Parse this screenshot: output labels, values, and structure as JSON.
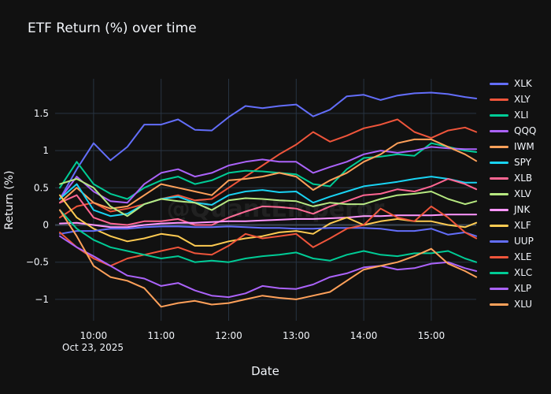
{
  "page": {
    "background_color": "#111111",
    "grid_color": "#283442",
    "zeroline_color": "#3a4654",
    "text_color": "#f2f5fa",
    "watermark": "@QuantEmperor"
  },
  "chart_data": {
    "type": "line",
    "title": "ETF Return (%) over time",
    "xlabel": "Date",
    "ylabel": "Return (%)",
    "date_annotation": "Oct 23, 2025",
    "legend_position": "right",
    "grid": true,
    "ylim": [
      -1.29,
      1.96
    ],
    "yticks": [
      {
        "label": "1.5",
        "value": 1.5
      },
      {
        "label": "1",
        "value": 1.0
      },
      {
        "label": "0.5",
        "value": 0.5
      },
      {
        "label": "0",
        "value": 0.0
      },
      {
        "label": "−0.5",
        "value": -0.5
      },
      {
        "label": "−1",
        "value": -1.0
      }
    ],
    "xticks": [
      {
        "label": "10:00",
        "minute": 30
      },
      {
        "label": "11:00",
        "minute": 90
      },
      {
        "label": "12:00",
        "minute": 150
      },
      {
        "label": "13:00",
        "minute": 210
      },
      {
        "label": "14:00",
        "minute": 270
      },
      {
        "label": "15:00",
        "minute": 330
      }
    ],
    "x_time_labels": [
      "09:30",
      "09:45",
      "10:00",
      "10:15",
      "10:30",
      "10:45",
      "11:00",
      "11:15",
      "11:30",
      "11:45",
      "12:00",
      "12:15",
      "12:30",
      "12:45",
      "13:00",
      "13:15",
      "13:30",
      "13:45",
      "14:00",
      "14:15",
      "14:30",
      "14:45",
      "15:00",
      "15:15",
      "15:30",
      "15:40"
    ],
    "x_minutes": [
      0,
      15,
      30,
      45,
      60,
      75,
      90,
      105,
      120,
      135,
      150,
      165,
      180,
      195,
      210,
      225,
      240,
      255,
      270,
      285,
      300,
      315,
      330,
      345,
      360,
      370
    ],
    "series": [
      {
        "name": "XLK",
        "color": "#636EFA",
        "values": [
          0.35,
          0.75,
          1.1,
          0.87,
          1.05,
          1.35,
          1.35,
          1.42,
          1.28,
          1.27,
          1.45,
          1.6,
          1.57,
          1.6,
          1.62,
          1.46,
          1.55,
          1.73,
          1.75,
          1.68,
          1.74,
          1.77,
          1.78,
          1.76,
          1.72,
          1.7
        ]
      },
      {
        "name": "XLY",
        "color": "#EF553B",
        "values": [
          0.1,
          0.25,
          0.3,
          0.18,
          0.22,
          0.28,
          0.35,
          0.4,
          0.33,
          0.35,
          0.5,
          0.65,
          0.8,
          0.95,
          1.08,
          1.25,
          1.12,
          1.2,
          1.3,
          1.35,
          1.42,
          1.25,
          1.17,
          1.27,
          1.31,
          1.25
        ]
      },
      {
        "name": "XLI",
        "color": "#00CC96",
        "values": [
          0.5,
          0.85,
          0.55,
          0.42,
          0.35,
          0.5,
          0.6,
          0.65,
          0.55,
          0.6,
          0.7,
          0.73,
          0.72,
          0.7,
          0.68,
          0.55,
          0.52,
          0.75,
          0.9,
          0.92,
          0.95,
          0.93,
          1.1,
          1.05,
          1.0,
          0.98
        ]
      },
      {
        "name": "QQQ",
        "color": "#AB63FA",
        "values": [
          0.35,
          0.65,
          0.45,
          0.32,
          0.3,
          0.55,
          0.7,
          0.75,
          0.65,
          0.7,
          0.8,
          0.85,
          0.88,
          0.85,
          0.85,
          0.7,
          0.78,
          0.85,
          0.95,
          1.0,
          0.97,
          1.0,
          1.05,
          1.03,
          1.02,
          1.02
        ]
      },
      {
        "name": "IWM",
        "color": "#FFA15A",
        "values": [
          0.3,
          0.5,
          0.3,
          0.22,
          0.25,
          0.4,
          0.55,
          0.5,
          0.45,
          0.4,
          0.6,
          0.62,
          0.65,
          0.7,
          0.65,
          0.47,
          0.6,
          0.7,
          0.85,
          0.95,
          1.1,
          1.15,
          1.15,
          1.05,
          0.95,
          0.86
        ]
      },
      {
        "name": "SPY",
        "color": "#19D3F3",
        "values": [
          0.35,
          0.55,
          0.2,
          0.12,
          0.15,
          0.28,
          0.35,
          0.38,
          0.3,
          0.27,
          0.4,
          0.45,
          0.47,
          0.44,
          0.45,
          0.3,
          0.38,
          0.45,
          0.52,
          0.55,
          0.58,
          0.62,
          0.65,
          0.62,
          0.57,
          0.57
        ]
      },
      {
        "name": "XLB",
        "color": "#FF6692",
        "values": [
          0.3,
          0.4,
          0.1,
          0.02,
          0.0,
          0.05,
          0.05,
          0.08,
          0.0,
          0.0,
          0.1,
          0.18,
          0.25,
          0.24,
          0.22,
          0.15,
          0.25,
          0.32,
          0.4,
          0.42,
          0.48,
          0.45,
          0.52,
          0.62,
          0.55,
          0.48
        ]
      },
      {
        "name": "XLV",
        "color": "#B6E880",
        "values": [
          0.55,
          0.62,
          0.5,
          0.25,
          0.12,
          0.28,
          0.35,
          0.32,
          0.3,
          0.2,
          0.33,
          0.36,
          0.35,
          0.33,
          0.32,
          0.25,
          0.3,
          0.28,
          0.28,
          0.35,
          0.4,
          0.42,
          0.45,
          0.35,
          0.28,
          0.32
        ]
      },
      {
        "name": "JNK",
        "color": "#FF97FF",
        "values": [
          0.02,
          0.03,
          0.0,
          -0.03,
          -0.03,
          0.0,
          0.02,
          0.03,
          0.03,
          0.04,
          0.05,
          0.05,
          0.06,
          0.07,
          0.08,
          0.08,
          0.09,
          0.1,
          0.12,
          0.12,
          0.13,
          0.13,
          0.13,
          0.14,
          0.14,
          0.14
        ]
      },
      {
        "name": "XLF",
        "color": "#FECB52",
        "values": [
          0.4,
          0.1,
          -0.05,
          -0.15,
          -0.22,
          -0.18,
          -0.12,
          -0.15,
          -0.28,
          -0.28,
          -0.22,
          -0.18,
          -0.15,
          -0.1,
          -0.08,
          -0.12,
          0.02,
          0.1,
          0.0,
          0.05,
          0.08,
          0.05,
          0.05,
          0.0,
          -0.03,
          0.03
        ]
      },
      {
        "name": "UUP",
        "color": "#636EFA",
        "values": [
          -0.12,
          -0.08,
          -0.08,
          -0.05,
          -0.05,
          -0.03,
          -0.02,
          -0.02,
          -0.03,
          -0.03,
          -0.02,
          -0.03,
          -0.04,
          -0.04,
          -0.05,
          -0.05,
          -0.04,
          -0.04,
          -0.04,
          -0.05,
          -0.08,
          -0.08,
          -0.05,
          -0.13,
          -0.1,
          -0.15
        ]
      },
      {
        "name": "XLE",
        "color": "#EF553B",
        "values": [
          -0.1,
          -0.3,
          -0.45,
          -0.55,
          -0.45,
          -0.4,
          -0.35,
          -0.3,
          -0.38,
          -0.4,
          -0.28,
          -0.12,
          -0.18,
          -0.15,
          -0.12,
          -0.3,
          -0.18,
          -0.05,
          0.0,
          0.22,
          0.1,
          0.05,
          0.25,
          0.1,
          -0.1,
          -0.18
        ]
      },
      {
        "name": "XLC",
        "color": "#00CC96",
        "values": [
          0.2,
          -0.05,
          -0.2,
          -0.3,
          -0.35,
          -0.4,
          -0.45,
          -0.42,
          -0.5,
          -0.48,
          -0.5,
          -0.45,
          -0.42,
          -0.4,
          -0.37,
          -0.45,
          -0.48,
          -0.4,
          -0.35,
          -0.4,
          -0.42,
          -0.38,
          -0.38,
          -0.35,
          -0.45,
          -0.5
        ]
      },
      {
        "name": "XLP",
        "color": "#AB63FA",
        "values": [
          -0.15,
          -0.3,
          -0.42,
          -0.55,
          -0.68,
          -0.72,
          -0.82,
          -0.78,
          -0.88,
          -0.95,
          -0.97,
          -0.92,
          -0.82,
          -0.85,
          -0.86,
          -0.8,
          -0.7,
          -0.65,
          -0.57,
          -0.55,
          -0.6,
          -0.58,
          -0.52,
          -0.5,
          -0.58,
          -0.62
        ]
      },
      {
        "name": "XLU",
        "color": "#FFA15A",
        "values": [
          0.2,
          -0.15,
          -0.55,
          -0.7,
          -0.75,
          -0.85,
          -1.1,
          -1.05,
          -1.02,
          -1.07,
          -1.05,
          -1.0,
          -0.95,
          -0.98,
          -1.0,
          -0.95,
          -0.9,
          -0.75,
          -0.6,
          -0.55,
          -0.5,
          -0.42,
          -0.32,
          -0.52,
          -0.62,
          -0.7
        ]
      }
    ]
  }
}
